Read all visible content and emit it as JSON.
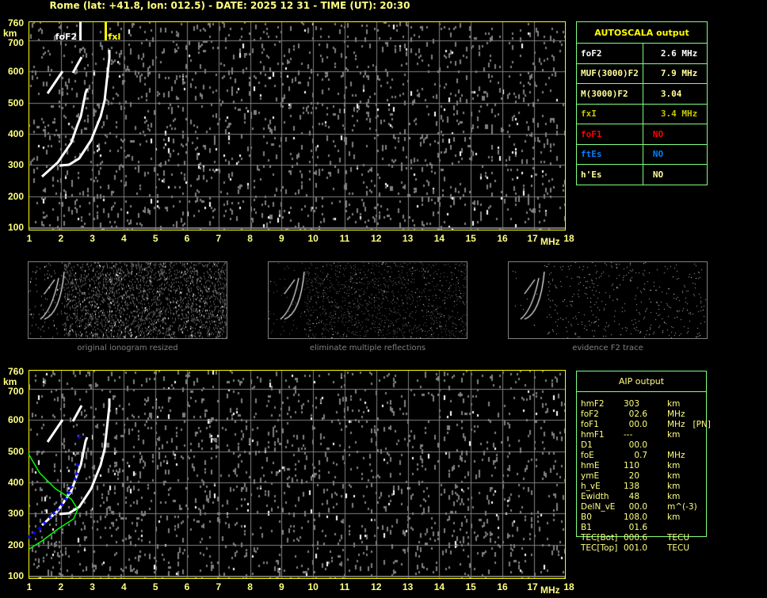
{
  "header": {
    "title": "Rome (lat: +41.8, lon: 012.5) - DATE: 2025 12 31 - TIME (UT): 20:30"
  },
  "axes": {
    "y_unit": "km",
    "x_unit": "MHz",
    "y_ticks": [
      "760",
      "700",
      "600",
      "500",
      "400",
      "300",
      "200",
      "100"
    ],
    "x_ticks": [
      "1",
      "2",
      "3",
      "4",
      "5",
      "6",
      "7",
      "8",
      "9",
      "10",
      "11",
      "12",
      "13",
      "14",
      "15",
      "16",
      "17",
      "18"
    ]
  },
  "top_plot": {
    "markers": [
      {
        "label": "foF2",
        "freq_mhz": 2.6,
        "color": "#ffffff"
      },
      {
        "label": "fxI",
        "freq_mhz": 3.4,
        "color": "#ffff00"
      }
    ]
  },
  "thumbnails": [
    {
      "label": "original ionogram resized"
    },
    {
      "label": "eliminate multiple reflections"
    },
    {
      "label": "evidence F2 trace"
    }
  ],
  "autoscala": {
    "title": "AUTOSCALA output",
    "rows": [
      {
        "param": "foF2",
        "value": "2.6 MHz",
        "color": "#ffffff"
      },
      {
        "param": "MUF(3000)F2",
        "value": "7.9 MHz",
        "color": "#ffff99"
      },
      {
        "param": "M(3000)F2",
        "value": "3.04",
        "color": "#ffff99"
      },
      {
        "param": "fxI",
        "value": "3.4 MHz",
        "color": "#c8c800"
      },
      {
        "param": "foF1",
        "value": "NO",
        "color": "#ff0000"
      },
      {
        "param": "ftEs",
        "value": "NO",
        "color": "#0080ff"
      },
      {
        "param": "h'Es",
        "value": "NO",
        "color": "#ffff99"
      }
    ]
  },
  "aip": {
    "title": "AIP output",
    "rows": [
      {
        "param": "hmF2",
        "value": "303",
        "unit": "km"
      },
      {
        "param": "foF2",
        "value": "  02.6",
        "unit": "MHz"
      },
      {
        "param": "foF1",
        "value": "  00.0",
        "unit": "MHz   [PN]"
      },
      {
        "param": "hmF1",
        "value": "---",
        "unit": "km"
      },
      {
        "param": "D1",
        "value": "  00.0",
        "unit": ""
      },
      {
        "param": "foE",
        "value": "    0.7",
        "unit": "MHz"
      },
      {
        "param": "hmE",
        "value": "110",
        "unit": "km"
      },
      {
        "param": "ymE",
        "value": "  20",
        "unit": "km"
      },
      {
        "param": "h_vE",
        "value": "138",
        "unit": "km"
      },
      {
        "param": "Ewidth",
        "value": "  48",
        "unit": "km"
      },
      {
        "param": "DelN_vE",
        "value": "  00.0",
        "unit": "m^(-3)"
      },
      {
        "param": "B0",
        "value": "108.0",
        "unit": "km"
      },
      {
        "param": "B1",
        "value": "  01.6",
        "unit": ""
      },
      {
        "param": "TEC[Bot]",
        "value": "000.6",
        "unit": "TECU"
      },
      {
        "param": "TEC[Top]",
        "value": "001.0",
        "unit": "TECU"
      }
    ]
  },
  "colors": {
    "axis": "#ffff00",
    "grid": "#808080",
    "table_border": "#80ff80",
    "profile": "#00ff00",
    "profile_points": "#0000ff"
  }
}
